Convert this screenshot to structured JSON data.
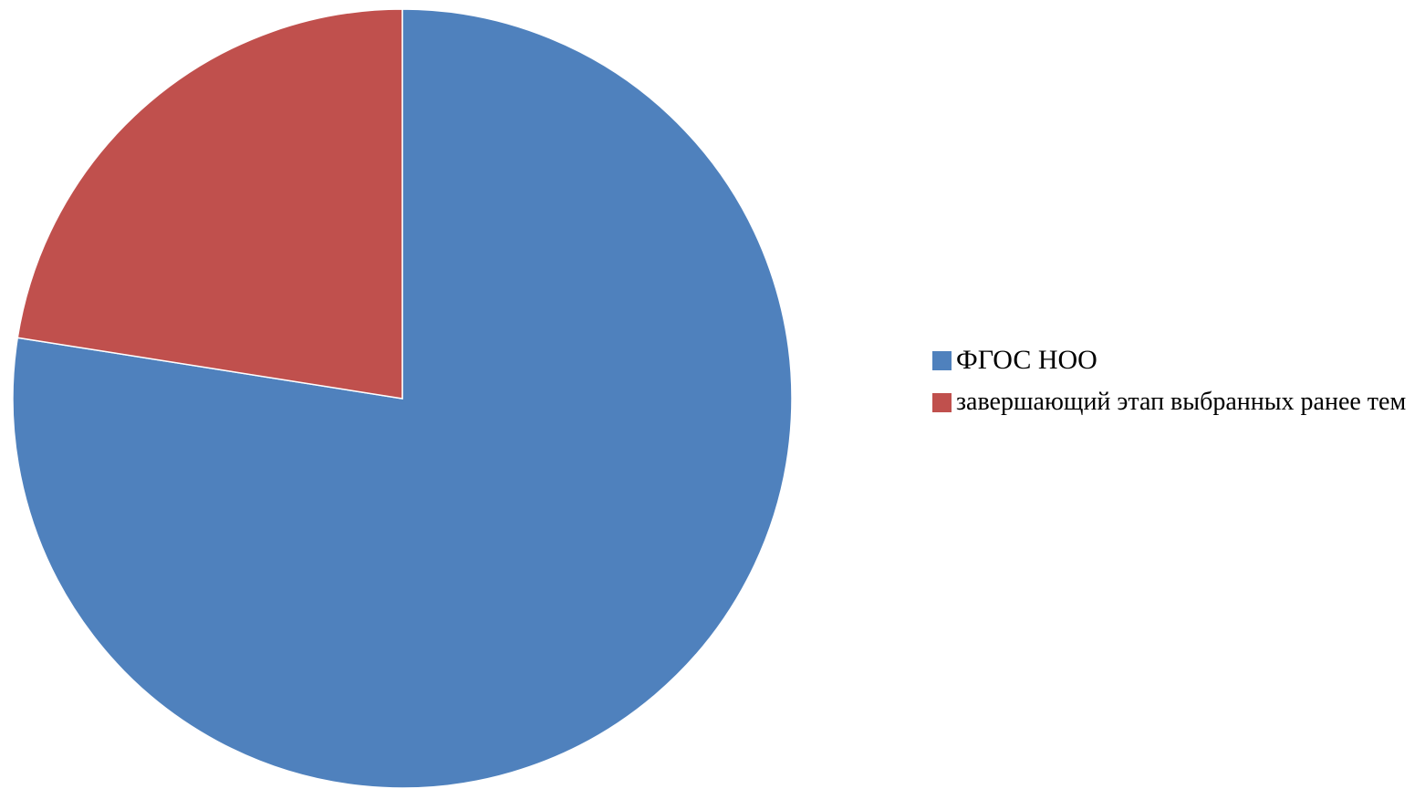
{
  "chart_data": {
    "type": "pie",
    "title": "",
    "start_angle": "top",
    "direction": "clockwise",
    "legend_position": "right",
    "slices": [
      {
        "label": "ФГОС НОО",
        "value": 77.5,
        "color": "#4f81bd"
      },
      {
        "label": "завершающий этап выбранных ранее тем",
        "value": 22.5,
        "color": "#c0504d"
      }
    ]
  }
}
